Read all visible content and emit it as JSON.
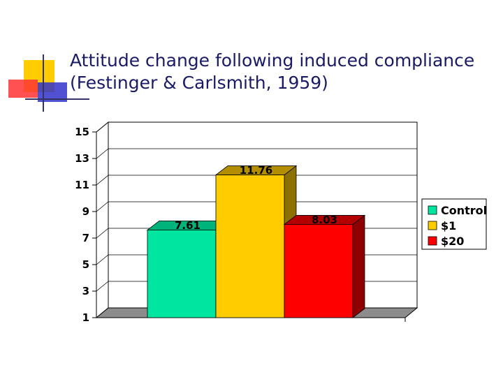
{
  "slide": {
    "title_line1": "Attitude change following induced compliance",
    "title_line2": "(Festinger & Carlsmith, 1959)"
  },
  "colors": {
    "deco_yellow": "#FFCC00",
    "deco_red": "#FF3333",
    "deco_blue": "#3333CC",
    "title": "#1a1a66"
  },
  "chart_data": {
    "type": "bar",
    "title": "",
    "xlabel": "",
    "ylabel": "",
    "ylim": [
      1,
      15
    ],
    "yticks": [
      1,
      3,
      5,
      7,
      9,
      11,
      13,
      15
    ],
    "grid": true,
    "legend_position": "right",
    "categories": [
      ""
    ],
    "series": [
      {
        "name": "Control",
        "values": [
          7.61
        ],
        "label": "7.61",
        "color": "#00E59F",
        "side_color": "#009966",
        "top_color": "#00B37A"
      },
      {
        "name": "$1",
        "values": [
          11.76
        ],
        "label": "11.76",
        "color": "#FFCC00",
        "side_color": "#8C7000",
        "top_color": "#B38F00"
      },
      {
        "name": "$20",
        "values": [
          8.03
        ],
        "label": "8.03",
        "color": "#FF0000",
        "side_color": "#8C0000",
        "top_color": "#B30000"
      }
    ]
  }
}
